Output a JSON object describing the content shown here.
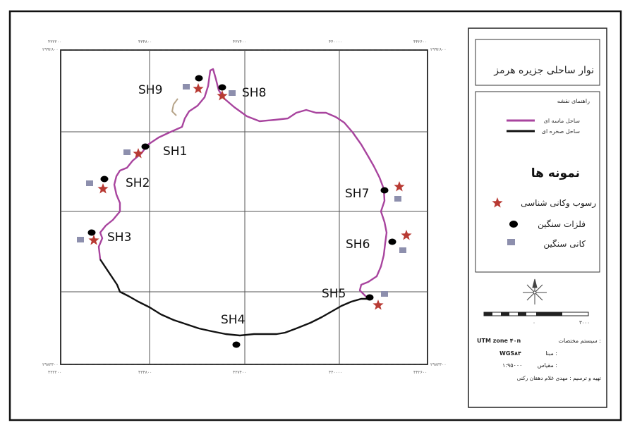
{
  "map": {
    "title": "نوار ساحلی جزیره هرمز",
    "legend_title": "راهنمای نقشه",
    "legend_items": [
      {
        "label": "ساحل ماسه ای",
        "color": "#a8449e"
      },
      {
        "label": "ساحل صخره ای",
        "color": "#111111"
      }
    ],
    "samples_title": "نمونه ها",
    "sample_types": [
      {
        "label": "رسوب وکانی شناسی",
        "symbol": "star",
        "color": "#b83a33"
      },
      {
        "label": "فلزات سنگین",
        "symbol": "dot",
        "color": "#000000"
      },
      {
        "label": "کانی سنگین",
        "symbol": "square",
        "color": "#8d8fad"
      }
    ],
    "scale": {
      "start": "۰",
      "end": "۳۰۰۰"
    },
    "info": [
      {
        "label": "سیستم مختصات :",
        "value": "UTM zone ۴۰n"
      },
      {
        "label": "مبنا :",
        "value": "WGS۸۴"
      },
      {
        "label": "مقیاس :",
        "value": "۱:۹۵۰۰۰"
      },
      {
        "label": "تهیه و ترسیم : مهدی غلام دهقان رکنی",
        "value": ""
      }
    ],
    "stations": [
      {
        "id": "SH9"
      },
      {
        "id": "SH8"
      },
      {
        "id": "SH1"
      },
      {
        "id": "SH2"
      },
      {
        "id": "SH7"
      },
      {
        "id": "SH3"
      },
      {
        "id": "SH6"
      },
      {
        "id": "SH5"
      },
      {
        "id": "SH4"
      }
    ],
    "colors": {
      "sandy_coast": "#a8449e",
      "rocky_coast": "#111111",
      "star": "#b83a33",
      "square": "#8d8fad"
    }
  }
}
